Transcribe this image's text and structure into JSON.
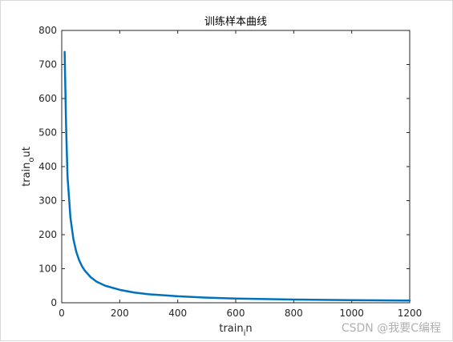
{
  "chart_data": {
    "type": "line",
    "title": "训练样本曲线",
    "xlabel_main": "train",
    "xlabel_sub": "i",
    "xlabel_tail": "n",
    "ylabel_main": "train",
    "ylabel_sub": "o",
    "ylabel_tail": "ut",
    "xlim": [
      0,
      1200
    ],
    "ylim": [
      0,
      800
    ],
    "xticks": [
      0,
      200,
      400,
      600,
      800,
      1000,
      1200
    ],
    "yticks": [
      0,
      100,
      200,
      300,
      400,
      500,
      600,
      700,
      800
    ],
    "grid": false,
    "series": [
      {
        "color": "#0072BD",
        "x": [
          10,
          15,
          20,
          30,
          40,
          50,
          60,
          70,
          80,
          100,
          120,
          150,
          200,
          250,
          300,
          400,
          500,
          600,
          700,
          800,
          900,
          1000,
          1100,
          1200
        ],
        "y": [
          737,
          520,
          370,
          250,
          188,
          150,
          125,
          107,
          94,
          75,
          62,
          50,
          38,
          30,
          25,
          19,
          15,
          12.5,
          11,
          9.5,
          8.5,
          7.5,
          7,
          6.5
        ]
      }
    ]
  },
  "watermark": "CSDN @我要C编程"
}
